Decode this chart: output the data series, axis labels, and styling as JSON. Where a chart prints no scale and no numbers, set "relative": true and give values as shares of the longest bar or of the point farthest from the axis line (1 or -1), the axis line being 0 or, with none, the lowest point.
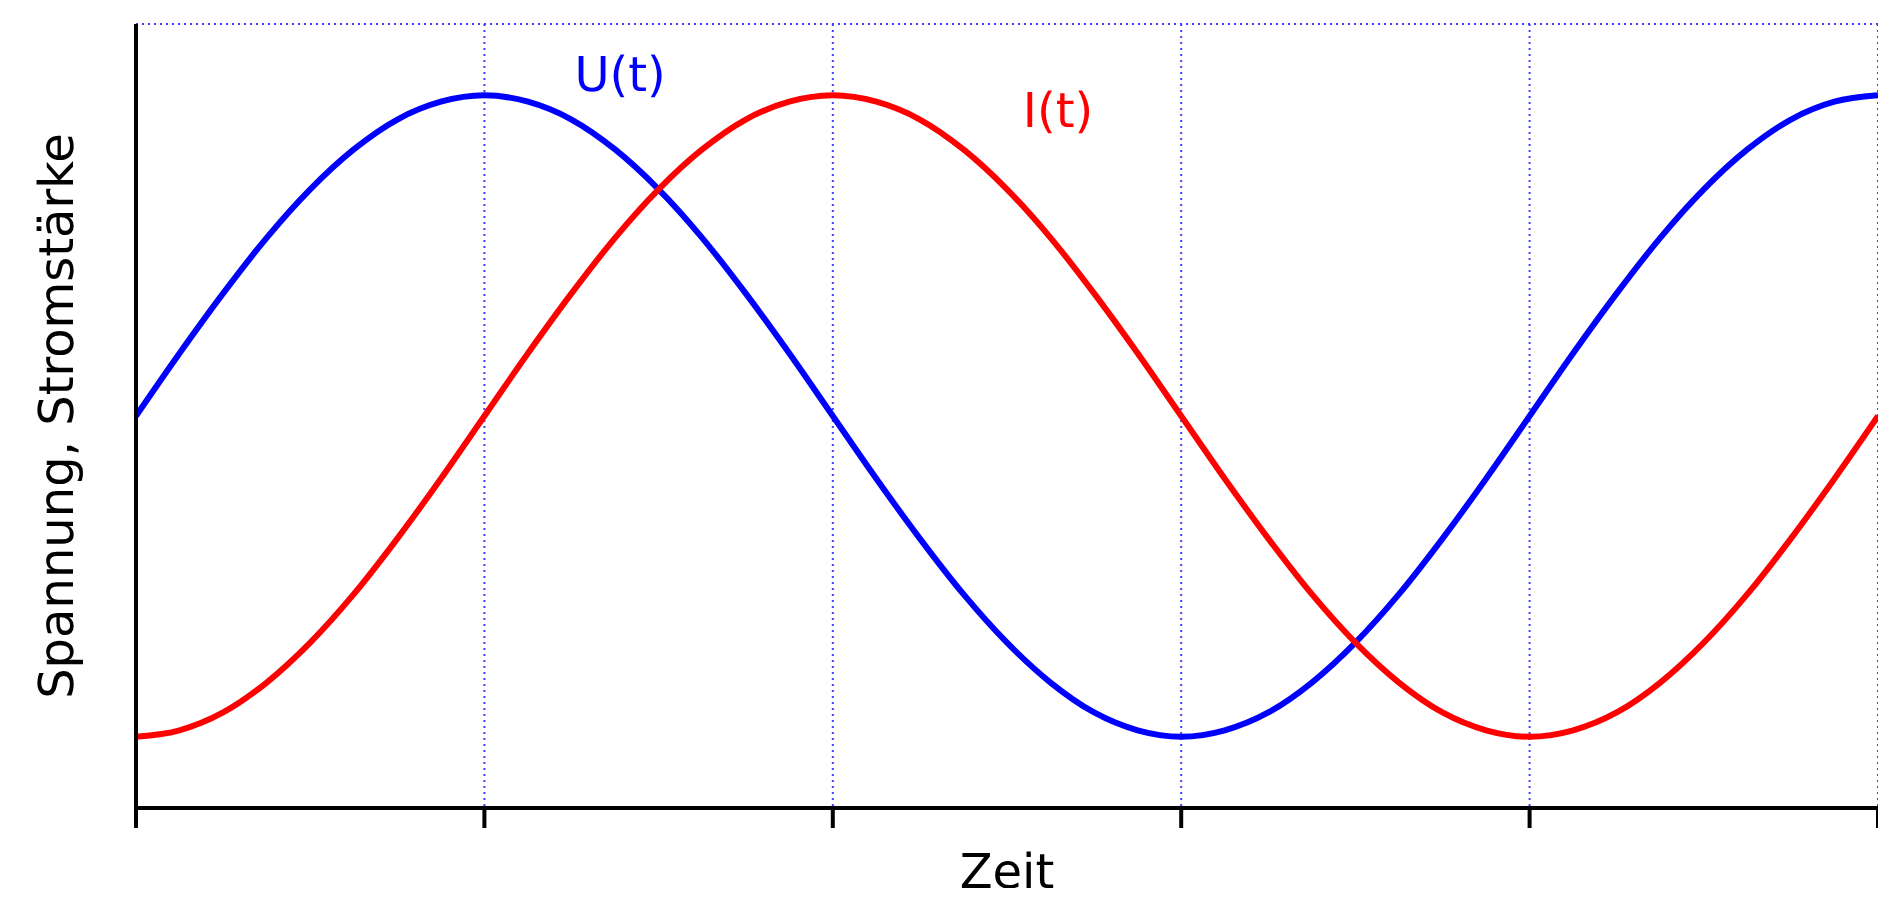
{
  "chart_data": {
    "type": "line",
    "relative": true,
    "xlabel": "Zeit",
    "ylabel": "Spannung, Stromstärke",
    "categories": [
      null,
      null,
      null,
      null,
      null,
      null,
      null,
      null,
      null,
      null,
      null,
      null,
      null,
      null,
      null,
      null,
      null,
      null,
      null,
      null,
      null,
      null,
      null,
      null,
      null,
      null,
      null,
      null,
      null,
      null,
      null,
      null,
      null,
      null,
      null,
      null,
      null,
      null,
      null,
      null,
      null
    ],
    "series": [
      {
        "name": "U(t)",
        "color": "#0000ff",
        "values": [
          0.55,
          0.638,
          0.722,
          0.8,
          0.868,
          0.924,
          0.966,
          0.991,
          1,
          0.991,
          0.966,
          0.924,
          0.868,
          0.8,
          0.722,
          0.638,
          0.55,
          0.462,
          0.378,
          0.3,
          0.232,
          0.176,
          0.134,
          0.109,
          0.1,
          0.109,
          0.134,
          0.176,
          0.232,
          0.3,
          0.378,
          0.462,
          0.55,
          0.638,
          0.722,
          0.8,
          0.868,
          0.924,
          0.966,
          0.991,
          1
        ]
      },
      {
        "name": "I(t)",
        "color": "#ff0000",
        "values": [
          0.1,
          0.109,
          0.134,
          0.176,
          0.232,
          0.3,
          0.378,
          0.462,
          0.55,
          0.638,
          0.722,
          0.8,
          0.868,
          0.924,
          0.966,
          0.991,
          1,
          0.991,
          0.966,
          0.924,
          0.868,
          0.8,
          0.722,
          0.638,
          0.55,
          0.462,
          0.378,
          0.3,
          0.232,
          0.176,
          0.134,
          0.109,
          0.1,
          0.109,
          0.134,
          0.176,
          0.232,
          0.3,
          0.378,
          0.462,
          0.55
        ]
      }
    ],
    "grid": true,
    "legend": false,
    "marker": "none",
    "line_style": "solid"
  }
}
